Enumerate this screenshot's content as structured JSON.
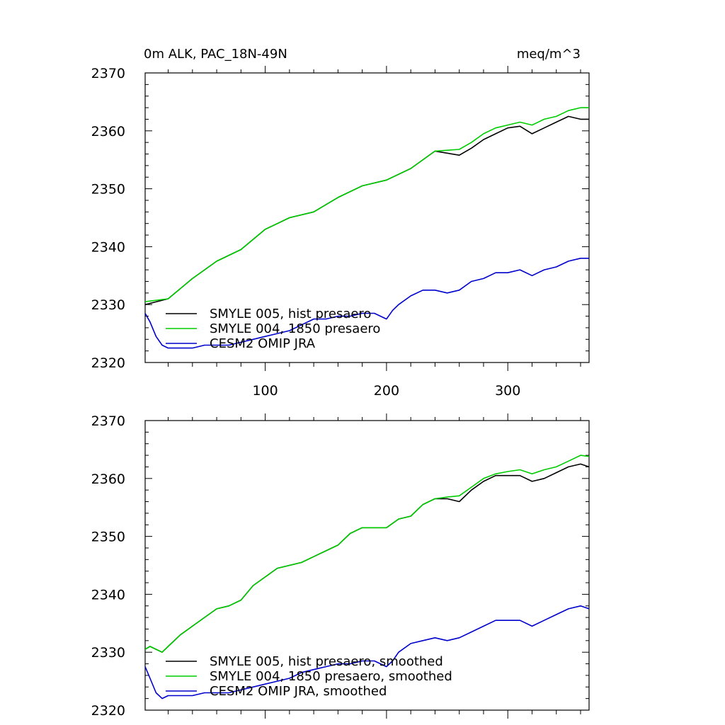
{
  "header": {
    "left_title": "0m ALK, PAC_18N-49N",
    "right_title": "meq/m^3"
  },
  "chart_data": [
    {
      "type": "line",
      "xlim": [
        1,
        367
      ],
      "ylim": [
        2320,
        2370
      ],
      "x_ticks": [
        100,
        200,
        300
      ],
      "y_ticks": [
        2320,
        2330,
        2340,
        2350,
        2360,
        2370
      ],
      "legend_position": "bottom-left",
      "series": [
        {
          "name": "SMYLE 005, hist presaero",
          "color": "#000000",
          "x": [
            1,
            20,
            40,
            60,
            80,
            100,
            120,
            140,
            160,
            180,
            200,
            220,
            240,
            260,
            270,
            280,
            290,
            300,
            310,
            320,
            330,
            340,
            350,
            360,
            367
          ],
          "y": [
            2330.0,
            2331.0,
            2334.5,
            2337.5,
            2339.5,
            2343.0,
            2345.0,
            2346.0,
            2348.5,
            2350.5,
            2351.5,
            2353.5,
            2356.5,
            2355.8,
            2357.0,
            2358.5,
            2359.5,
            2360.5,
            2360.8,
            2359.5,
            2360.5,
            2361.5,
            2362.5,
            2362.0,
            2362.0
          ]
        },
        {
          "name": "SMYLE 004, 1850 presaero",
          "color": "#00cc00",
          "x": [
            1,
            20,
            40,
            60,
            80,
            100,
            120,
            140,
            160,
            180,
            200,
            220,
            240,
            260,
            270,
            280,
            290,
            300,
            310,
            320,
            330,
            340,
            350,
            360,
            367
          ],
          "y": [
            2330.5,
            2331.0,
            2334.5,
            2337.5,
            2339.5,
            2343.0,
            2345.0,
            2346.0,
            2348.5,
            2350.5,
            2351.5,
            2353.5,
            2356.5,
            2356.8,
            2358.0,
            2359.5,
            2360.5,
            2361.0,
            2361.5,
            2361.0,
            2362.0,
            2362.5,
            2363.5,
            2364.0,
            2364.0
          ]
        },
        {
          "name": "CESM2 OMIP JRA",
          "color": "#0000cc",
          "x": [
            1,
            5,
            10,
            15,
            20,
            30,
            40,
            50,
            60,
            70,
            80,
            90,
            100,
            110,
            120,
            130,
            140,
            150,
            160,
            170,
            180,
            190,
            200,
            205,
            210,
            220,
            230,
            240,
            250,
            260,
            270,
            280,
            290,
            300,
            310,
            320,
            330,
            340,
            350,
            360,
            367
          ],
          "y": [
            2328.5,
            2327.0,
            2324.5,
            2323.0,
            2322.5,
            2322.5,
            2322.5,
            2323.0,
            2323.0,
            2323.0,
            2323.5,
            2324.0,
            2324.5,
            2325.0,
            2325.5,
            2326.5,
            2327.5,
            2327.5,
            2328.0,
            2328.0,
            2328.5,
            2328.5,
            2327.5,
            2329.0,
            2330.0,
            2331.5,
            2332.5,
            2332.5,
            2332.0,
            2332.5,
            2334.0,
            2334.5,
            2335.5,
            2335.5,
            2336.0,
            2335.0,
            2336.0,
            2336.5,
            2337.5,
            2338.0,
            2338.0
          ]
        }
      ]
    },
    {
      "type": "line",
      "xlim": [
        1,
        367
      ],
      "ylim": [
        2320,
        2370
      ],
      "x_ticks": [
        100,
        200,
        300
      ],
      "y_ticks": [
        2320,
        2330,
        2340,
        2350,
        2360,
        2370
      ],
      "legend_position": "bottom-left",
      "series": [
        {
          "name": "SMYLE 005, hist presaero, smoothed",
          "color": "#000000",
          "x": [
            1,
            5,
            10,
            15,
            20,
            30,
            40,
            50,
            60,
            70,
            80,
            90,
            100,
            110,
            120,
            130,
            140,
            150,
            160,
            170,
            180,
            190,
            200,
            210,
            220,
            230,
            240,
            250,
            260,
            270,
            280,
            290,
            300,
            310,
            320,
            330,
            340,
            350,
            360,
            367
          ],
          "y": [
            2330.5,
            2331.0,
            2330.5,
            2330.0,
            2331.0,
            2333.0,
            2334.5,
            2336.0,
            2337.5,
            2338.0,
            2339.0,
            2341.5,
            2343.0,
            2344.5,
            2345.0,
            2345.5,
            2346.5,
            2347.5,
            2348.5,
            2350.5,
            2351.5,
            2351.5,
            2351.5,
            2353.0,
            2353.5,
            2355.5,
            2356.5,
            2356.5,
            2356.0,
            2358.0,
            2359.5,
            2360.5,
            2360.5,
            2360.5,
            2359.5,
            2360.0,
            2361.0,
            2362.0,
            2362.5,
            2362.0
          ]
        },
        {
          "name": "SMYLE 004, 1850 presaero, smoothed",
          "color": "#00cc00",
          "x": [
            1,
            5,
            10,
            15,
            20,
            30,
            40,
            50,
            60,
            70,
            80,
            90,
            100,
            110,
            120,
            130,
            140,
            150,
            160,
            170,
            180,
            190,
            200,
            210,
            220,
            230,
            240,
            250,
            260,
            270,
            280,
            290,
            300,
            310,
            320,
            330,
            340,
            350,
            360,
            367
          ],
          "y": [
            2330.5,
            2331.0,
            2330.5,
            2330.0,
            2331.0,
            2333.0,
            2334.5,
            2336.0,
            2337.5,
            2338.0,
            2339.0,
            2341.5,
            2343.0,
            2344.5,
            2345.0,
            2345.5,
            2346.5,
            2347.5,
            2348.5,
            2350.5,
            2351.5,
            2351.5,
            2351.5,
            2353.0,
            2353.5,
            2355.5,
            2356.5,
            2356.8,
            2357.0,
            2358.5,
            2360.0,
            2360.8,
            2361.2,
            2361.5,
            2360.8,
            2361.5,
            2362.0,
            2363.0,
            2364.0,
            2363.8
          ]
        },
        {
          "name": "CESM2 OMIP JRA, smoothed",
          "color": "#0000cc",
          "x": [
            1,
            5,
            10,
            15,
            20,
            30,
            40,
            50,
            60,
            70,
            80,
            90,
            100,
            110,
            120,
            130,
            140,
            150,
            160,
            170,
            180,
            190,
            200,
            205,
            210,
            220,
            230,
            240,
            250,
            260,
            270,
            280,
            290,
            300,
            310,
            320,
            330,
            340,
            350,
            360,
            367
          ],
          "y": [
            2327.5,
            2325.5,
            2323.0,
            2322.0,
            2322.5,
            2322.5,
            2322.5,
            2323.0,
            2323.0,
            2323.0,
            2323.5,
            2324.0,
            2324.5,
            2325.0,
            2325.5,
            2326.5,
            2327.0,
            2327.5,
            2328.0,
            2328.0,
            2328.5,
            2328.5,
            2327.5,
            2328.5,
            2330.0,
            2331.5,
            2332.0,
            2332.5,
            2332.0,
            2332.5,
            2333.5,
            2334.5,
            2335.5,
            2335.5,
            2335.5,
            2334.5,
            2335.5,
            2336.5,
            2337.5,
            2338.0,
            2337.5
          ]
        }
      ]
    }
  ]
}
